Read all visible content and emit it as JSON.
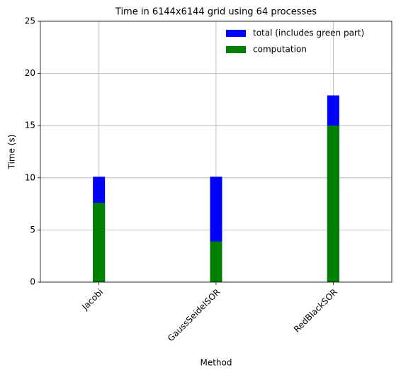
{
  "chart_data": {
    "type": "bar",
    "title": "Time in 6144x6144 grid using 64 processes",
    "x_label": "Method",
    "y_label": "Time (s)",
    "categories": [
      "Jacobi",
      "GaussSeidelSOR",
      "RedBlackSOR"
    ],
    "series": [
      {
        "name": "total (includes green part)",
        "color": "#0000ff",
        "values": [
          10.1,
          10.1,
          17.9
        ]
      },
      {
        "name": "computation",
        "color": "#008000",
        "values": [
          7.6,
          3.9,
          15.0
        ]
      }
    ],
    "ylim": [
      0,
      25
    ],
    "yticks": [
      0,
      5,
      10,
      15,
      20,
      25
    ],
    "grid": true,
    "legend": "upper right"
  }
}
